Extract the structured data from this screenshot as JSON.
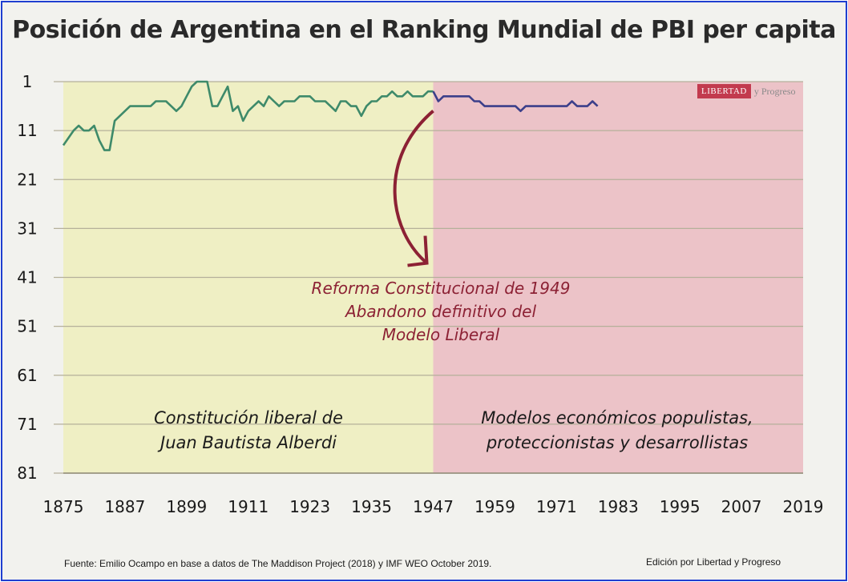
{
  "title": "Posición de Argentina en el Ranking Mundial de PBI per capita",
  "logo": {
    "box_text": "LIBERTAD",
    "rest_text": "y Progreso"
  },
  "footer": {
    "source": "Fuente: Emilio Ocampo en base a datos de The Maddison Project (2018) y IMF WEO October 2019.",
    "edition": "Edición por Libertad y Progreso"
  },
  "annotations": {
    "reform": [
      "Reforma Constitucional de 1949",
      "Abandono definitivo del",
      "Modelo Liberal"
    ],
    "left_era": [
      "Constitución liberal de",
      "Juan Bautista Alberdi"
    ],
    "right_era": [
      "Modelos económicos populistas,",
      "proteccionistas y desarrollistas"
    ]
  },
  "colors": {
    "left_band": "#efefc4",
    "right_band": "#ecc3c8",
    "line_before": "#3e8a6a",
    "line_after": "#3b3f8a",
    "arrow": "#8c2134",
    "grid": "#b5b09a",
    "frame": "#1f3fd0"
  },
  "chart_data": {
    "type": "line",
    "title": "Posición de Argentina en el Ranking Mundial de PBI per capita",
    "xlabel": "",
    "ylabel": "",
    "x_ticks": [
      1875,
      1887,
      1899,
      1911,
      1923,
      1935,
      1947,
      1959,
      1971,
      1983,
      1995,
      2007,
      2019
    ],
    "y_ticks": [
      1,
      11,
      21,
      31,
      41,
      51,
      61,
      71,
      81
    ],
    "xlim": [
      1875,
      2019
    ],
    "ylim": [
      1,
      81
    ],
    "y_inverted": true,
    "grid": true,
    "split_year": 1947,
    "series": [
      {
        "values": [
          [
            1875,
            14
          ],
          [
            1877,
            11
          ],
          [
            1878,
            10
          ],
          [
            1879,
            11
          ],
          [
            1880,
            11
          ],
          [
            1881,
            10
          ],
          [
            1882,
            13
          ],
          [
            1883,
            15
          ],
          [
            1884,
            15
          ],
          [
            1885,
            9
          ],
          [
            1886,
            8
          ],
          [
            1887,
            7
          ],
          [
            1888,
            6
          ],
          [
            1889,
            6
          ],
          [
            1890,
            6
          ],
          [
            1891,
            6
          ],
          [
            1892,
            6
          ],
          [
            1893,
            5
          ],
          [
            1894,
            5
          ],
          [
            1895,
            5
          ],
          [
            1896,
            6
          ],
          [
            1897,
            7
          ],
          [
            1898,
            6
          ],
          [
            1899,
            4
          ],
          [
            1900,
            2
          ],
          [
            1901,
            1
          ],
          [
            1902,
            1
          ],
          [
            1903,
            1
          ],
          [
            1904,
            6
          ],
          [
            1905,
            6
          ],
          [
            1906,
            4
          ],
          [
            1907,
            2
          ],
          [
            1908,
            7
          ],
          [
            1909,
            6
          ],
          [
            1910,
            9
          ],
          [
            1911,
            7
          ],
          [
            1912,
            6
          ],
          [
            1913,
            5
          ],
          [
            1914,
            6
          ],
          [
            1915,
            4
          ],
          [
            1916,
            5
          ],
          [
            1917,
            6
          ],
          [
            1918,
            5
          ],
          [
            1919,
            5
          ],
          [
            1920,
            5
          ],
          [
            1921,
            4
          ],
          [
            1922,
            4
          ],
          [
            1923,
            4
          ],
          [
            1924,
            5
          ],
          [
            1925,
            5
          ],
          [
            1926,
            5
          ],
          [
            1927,
            6
          ],
          [
            1928,
            7
          ],
          [
            1929,
            5
          ],
          [
            1930,
            5
          ],
          [
            1931,
            6
          ],
          [
            1932,
            6
          ],
          [
            1933,
            8
          ],
          [
            1934,
            6
          ],
          [
            1935,
            5
          ],
          [
            1936,
            5
          ],
          [
            1937,
            4
          ],
          [
            1938,
            4
          ],
          [
            1939,
            3
          ],
          [
            1940,
            4
          ],
          [
            1941,
            4
          ],
          [
            1942,
            3
          ],
          [
            1943,
            4
          ],
          [
            1944,
            4
          ],
          [
            1945,
            4
          ],
          [
            1946,
            3
          ],
          [
            1947,
            3
          ],
          [
            1948,
            5
          ],
          [
            1949,
            4
          ],
          [
            1950,
            4
          ],
          [
            1951,
            4
          ],
          [
            1952,
            4
          ],
          [
            1953,
            4
          ],
          [
            1954,
            4
          ],
          [
            1955,
            5
          ],
          [
            1956,
            5
          ],
          [
            1957,
            6
          ],
          [
            1958,
            6
          ],
          [
            1959,
            6
          ],
          [
            1960,
            6
          ],
          [
            1961,
            6
          ],
          [
            1962,
            6
          ],
          [
            1963,
            6
          ],
          [
            1964,
            7
          ],
          [
            1965,
            6
          ],
          [
            1966,
            6
          ],
          [
            1967,
            6
          ],
          [
            1968,
            6
          ],
          [
            1969,
            6
          ],
          [
            1970,
            6
          ],
          [
            1971,
            6
          ],
          [
            1972,
            6
          ],
          [
            1973,
            6
          ],
          [
            1974,
            5
          ],
          [
            1975,
            6
          ],
          [
            1976,
            6
          ],
          [
            1977,
            6
          ],
          [
            1978,
            5
          ],
          [
            1979,
            6
          ]
        ]
      }
    ]
  }
}
